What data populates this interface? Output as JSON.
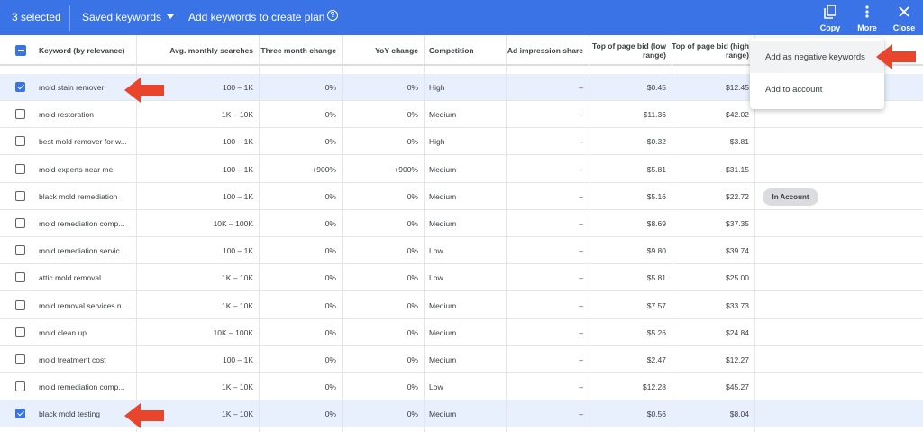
{
  "toolbar": {
    "selected": "3 selected",
    "saved_keywords": "Saved keywords",
    "add_keywords": "Add keywords to create plan",
    "copy": "Copy",
    "more": "More",
    "close": "Close"
  },
  "columns": [
    "Keyword (by relevance)",
    "Avg. monthly searches",
    "Three month change",
    "YoY change",
    "Competition",
    "Ad impression share",
    "Top of page bid (low range)",
    "Top of page bid (high range)"
  ],
  "rows": [
    {
      "keyword": "mold stain remover",
      "searches": "100 – 1K",
      "three_month": "0%",
      "yoy": "0%",
      "competition": "High",
      "impression": "–",
      "bid_low": "$0.45",
      "bid_high": "$12.45",
      "checked": true
    },
    {
      "keyword": "mold restoration",
      "searches": "1K – 10K",
      "three_month": "0%",
      "yoy": "0%",
      "competition": "Medium",
      "impression": "–",
      "bid_low": "$11.36",
      "bid_high": "$42.02",
      "checked": false
    },
    {
      "keyword": "best mold remover for w...",
      "searches": "100 – 1K",
      "three_month": "0%",
      "yoy": "0%",
      "competition": "High",
      "impression": "–",
      "bid_low": "$0.32",
      "bid_high": "$3.81",
      "checked": false
    },
    {
      "keyword": "mold experts near me",
      "searches": "100 – 1K",
      "three_month": "+900%",
      "yoy": "+900%",
      "competition": "Medium",
      "impression": "–",
      "bid_low": "$5.81",
      "bid_high": "$31.15",
      "checked": false
    },
    {
      "keyword": "black mold remediation",
      "searches": "100 – 1K",
      "three_month": "0%",
      "yoy": "0%",
      "competition": "Medium",
      "impression": "–",
      "bid_low": "$5.16",
      "bid_high": "$22.72",
      "checked": false,
      "badge": "In Account"
    },
    {
      "keyword": "mold remediation comp...",
      "searches": "10K – 100K",
      "three_month": "0%",
      "yoy": "0%",
      "competition": "Medium",
      "impression": "–",
      "bid_low": "$8.69",
      "bid_high": "$37.35",
      "checked": false
    },
    {
      "keyword": "mold remediation servic...",
      "searches": "100 – 1K",
      "three_month": "0%",
      "yoy": "0%",
      "competition": "Low",
      "impression": "–",
      "bid_low": "$9.80",
      "bid_high": "$39.74",
      "checked": false
    },
    {
      "keyword": "attic mold removal",
      "searches": "1K – 10K",
      "three_month": "0%",
      "yoy": "0%",
      "competition": "Low",
      "impression": "–",
      "bid_low": "$5.81",
      "bid_high": "$25.00",
      "checked": false
    },
    {
      "keyword": "mold removal services n...",
      "searches": "1K – 10K",
      "three_month": "0%",
      "yoy": "0%",
      "competition": "Medium",
      "impression": "–",
      "bid_low": "$7.57",
      "bid_high": "$33.73",
      "checked": false
    },
    {
      "keyword": "mold clean up",
      "searches": "10K – 100K",
      "three_month": "0%",
      "yoy": "0%",
      "competition": "Medium",
      "impression": "–",
      "bid_low": "$5.26",
      "bid_high": "$24.84",
      "checked": false
    },
    {
      "keyword": "mold treatment cost",
      "searches": "100 – 1K",
      "three_month": "0%",
      "yoy": "0%",
      "competition": "Medium",
      "impression": "–",
      "bid_low": "$2.47",
      "bid_high": "$12.27",
      "checked": false
    },
    {
      "keyword": "mold remediation comp...",
      "searches": "1K – 10K",
      "three_month": "0%",
      "yoy": "0%",
      "competition": "Low",
      "impression": "–",
      "bid_low": "$12.28",
      "bid_high": "$45.27",
      "checked": false
    },
    {
      "keyword": "black mold testing",
      "searches": "1K – 10K",
      "three_month": "0%",
      "yoy": "0%",
      "competition": "Medium",
      "impression": "–",
      "bid_low": "$0.56",
      "bid_high": "$8.04",
      "checked": true
    }
  ],
  "menu": {
    "add_negative": "Add as negative keywords",
    "add_account": "Add to account"
  },
  "colors": {
    "accent": "#3a73e6",
    "selected_row": "#e8f0fe",
    "annotation_arrow": "#e8452c"
  },
  "icons": [
    "copy-icon",
    "more-vert-icon",
    "close-icon",
    "help-icon",
    "dropdown-caret-icon",
    "red-arrow-annotation"
  ]
}
